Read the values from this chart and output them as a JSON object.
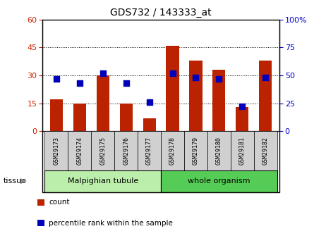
{
  "title": "GDS732 / 143333_at",
  "samples": [
    "GSM29173",
    "GSM29174",
    "GSM29175",
    "GSM29176",
    "GSM29177",
    "GSM29178",
    "GSM29179",
    "GSM29180",
    "GSM29181",
    "GSM29182"
  ],
  "counts": [
    17,
    15,
    30,
    15,
    7,
    46,
    38,
    33,
    13,
    38
  ],
  "percentiles": [
    47,
    43,
    52,
    43,
    26,
    52,
    48,
    47,
    22,
    48
  ],
  "ylim_left": [
    0,
    60
  ],
  "ylim_right": [
    0,
    100
  ],
  "yticks_left": [
    0,
    15,
    30,
    45,
    60
  ],
  "yticks_right": [
    0,
    25,
    50,
    75,
    100
  ],
  "bar_color": "#bb2200",
  "dot_color": "#0000bb",
  "tissue_groups": [
    {
      "label": "Malpighian tubule",
      "start": 0,
      "end": 5,
      "color": "#bbeeaa"
    },
    {
      "label": "whole organism",
      "start": 5,
      "end": 10,
      "color": "#55cc55"
    }
  ],
  "legend_items": [
    {
      "label": "count",
      "color": "#bb2200"
    },
    {
      "label": "percentile rank within the sample",
      "color": "#0000bb"
    }
  ],
  "xlabel_tissue": "tissue",
  "bar_width": 0.55,
  "dot_size": 30,
  "tick_label_color_left": "#cc2200",
  "tick_label_color_right": "#0000cc",
  "right_axis_suffix": "%"
}
